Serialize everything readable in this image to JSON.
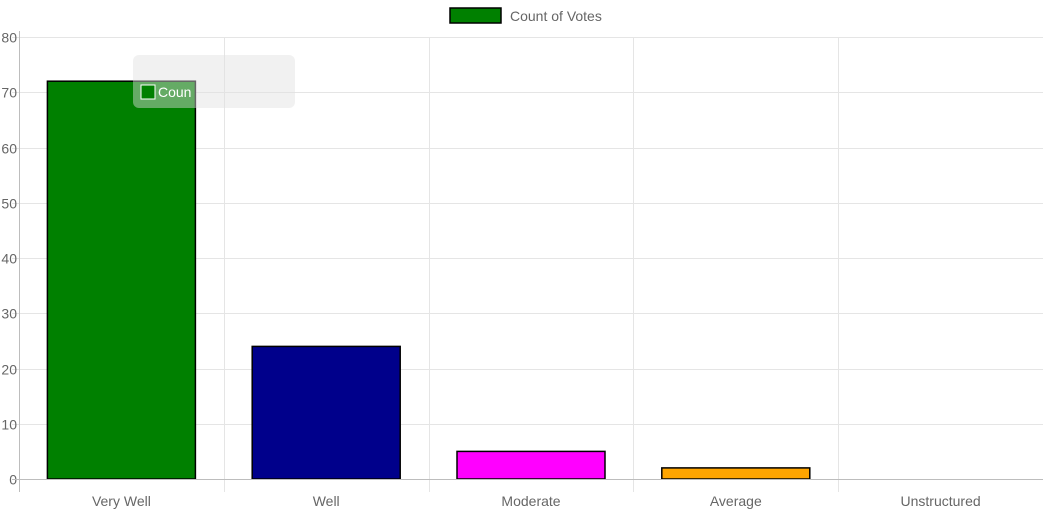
{
  "chart_data": {
    "type": "bar",
    "categories": [
      "Very Well",
      "Well",
      "Moderate",
      "Average",
      "Unstructured"
    ],
    "series": [
      {
        "name": "Count of Votes",
        "values": [
          72,
          24,
          5,
          2,
          0
        ],
        "colors": [
          "#008000",
          "#00008b",
          "#ff00ff",
          "#ffa500",
          "#808080"
        ],
        "border_color": "#000000",
        "legend_color": "#008000"
      }
    ],
    "y_ticks": [
      0,
      10,
      20,
      30,
      40,
      50,
      60,
      70,
      80
    ],
    "ylim": [
      0,
      80
    ],
    "grid": true,
    "legend_position": "top",
    "tooltip": {
      "visible": true,
      "text": "Coun",
      "swatch_color": "#008000"
    }
  }
}
